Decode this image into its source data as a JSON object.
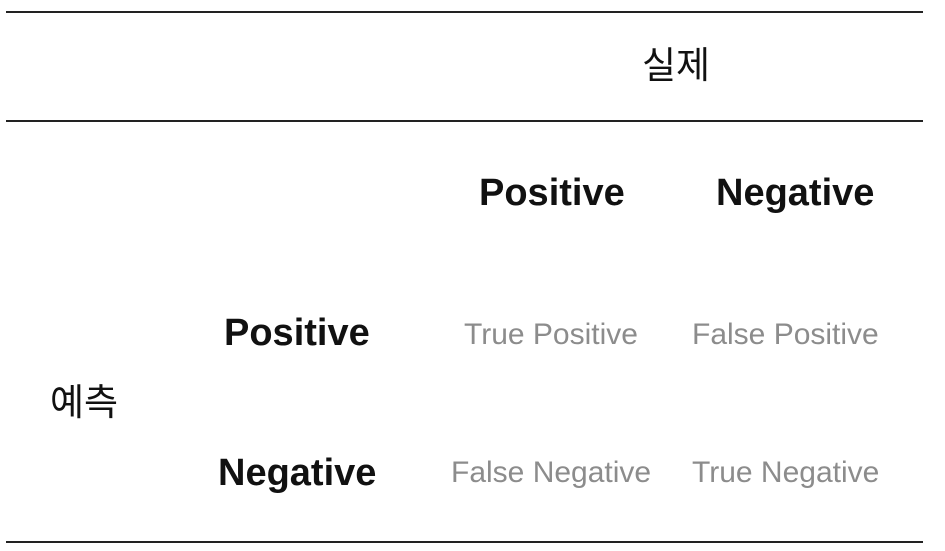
{
  "table": {
    "actual_header": "실제",
    "predicted_header": "예측",
    "columns": [
      "Positive",
      "Negative"
    ],
    "rows": [
      "Positive",
      "Negative"
    ],
    "cells": [
      [
        "True Positive",
        "False Positive"
      ],
      [
        "False Negative",
        "True Negative"
      ]
    ]
  }
}
